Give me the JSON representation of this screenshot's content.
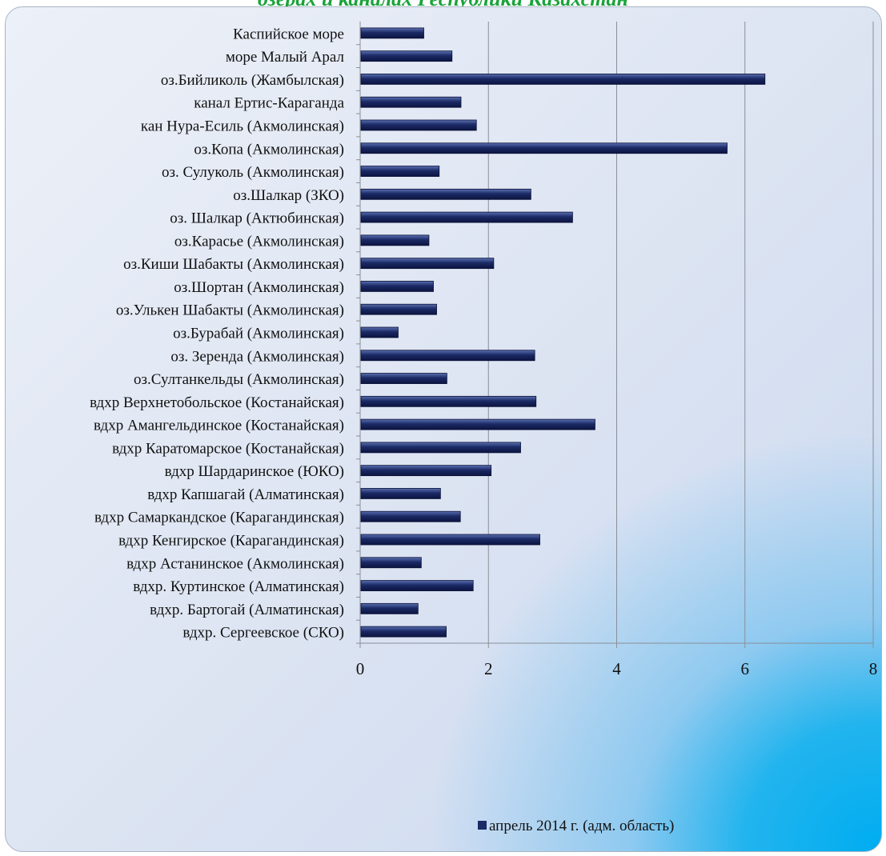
{
  "page": {
    "title": "озерах и каналах Республики Казахстан"
  },
  "chart_data": {
    "type": "bar",
    "orientation": "horizontal",
    "title": "озерах и каналах Республики Казахстан",
    "xlabel": "",
    "ylabel": "",
    "xlim": [
      0,
      8
    ],
    "xticks": [
      0,
      2,
      4,
      6,
      8
    ],
    "grid": "vertical",
    "legend_position": "bottom",
    "bar_color": "#1b2a66",
    "categories": [
      "Каспийское море",
      "море Малый Арал",
      "оз.Бийликоль (Жамбылская)",
      "канал Ертис-Караганда",
      "кан Нура-Есиль (Акмолинская)",
      "оз.Копа  (Акмолинская)",
      "оз. Сулуколь (Акмолинская)",
      "оз.Шалкар (ЗКО)",
      "оз. Шалкар (Актюбинская)",
      "оз.Карасье (Акмолинская)",
      "оз.Киши Шабакты (Акмолинская)",
      "оз.Шортан (Акмолинская)",
      "оз.Улькен Шабакты (Акмолинская)",
      "оз.Бурабай (Акмолинская)",
      "оз. Зеренда (Акмолинская)",
      "оз.Султанкельды  (Акмолинская)",
      "вдхр Верхнетобольское (Костанайская)",
      "вдхр Амангельдинское (Костанайская)",
      "вдхр Каратомарское (Костанайская)",
      "вдхр Шардаринское (ЮКО)",
      "вдхр Капшагай (Алматинская)",
      "вдхр Самаркандское (Карагандинская)",
      "вдхр Кенгирское (Карагандинская)",
      "вдхр Астанинское (Акмолинская)",
      "вдхр. Куртинское (Алматинская)",
      "вдхр. Бартогай (Алматинская)",
      "вдхр. Сергеевское  (СКО)"
    ],
    "series": [
      {
        "name": "апрель  2014 г. (адм. область)",
        "values": [
          0.98,
          1.42,
          6.3,
          1.56,
          1.8,
          5.71,
          1.22,
          2.65,
          3.3,
          1.06,
          2.07,
          1.13,
          1.18,
          0.58,
          2.71,
          1.34,
          2.73,
          3.65,
          2.49,
          2.03,
          1.24,
          1.55,
          2.79,
          0.94,
          1.75,
          0.89,
          1.33
        ]
      }
    ]
  }
}
